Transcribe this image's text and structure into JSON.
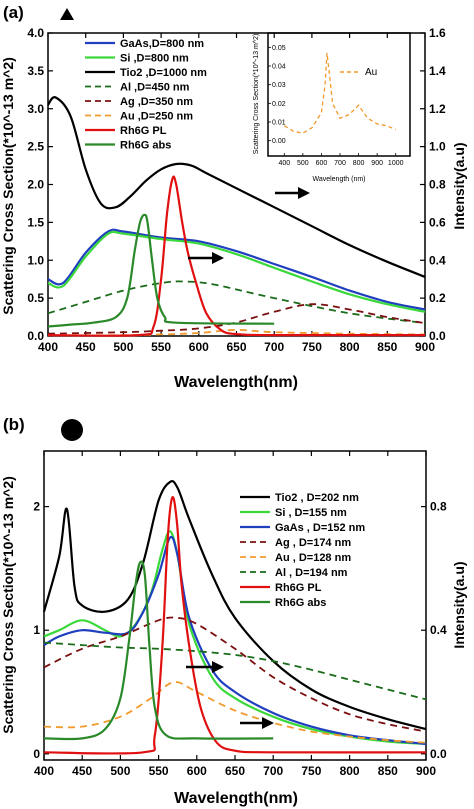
{
  "chart_data": [
    {
      "panel": "(a)",
      "type": "line",
      "xlabel": "Wavelength(nm)",
      "ylabel": "Scattering Cross Section(*10^-13 m^2)",
      "y2label": "Intensity(a.u)",
      "xlim": [
        400,
        900
      ],
      "ylim": [
        0,
        4.0
      ],
      "y2lim": [
        0,
        1.6
      ],
      "xticks": [
        "400",
        "450",
        "500",
        "550",
        "600",
        "650",
        "700",
        "750",
        "800",
        "850",
        "900"
      ],
      "yticks": [
        "0.0",
        "0.5",
        "1.0",
        "1.5",
        "2.0",
        "2.5",
        "3.0",
        "3.5",
        "4.0"
      ],
      "y2ticks": [
        "0.0",
        "0.2",
        "0.4",
        "0.6",
        "0.8",
        "1.0",
        "1.2",
        "1.4",
        "1.6"
      ],
      "legend_position": "top-left",
      "series": [
        {
          "name": "GaAs,D=800 nm",
          "color": "#1f3fbf",
          "style": "solid",
          "x": [
            400,
            420,
            450,
            480,
            500,
            550,
            600,
            650,
            700,
            750,
            800,
            850,
            900
          ],
          "y": [
            0.75,
            0.7,
            1.1,
            1.38,
            1.38,
            1.3,
            1.25,
            1.12,
            0.95,
            0.78,
            0.6,
            0.45,
            0.35
          ]
        },
        {
          "name": "Si      ,D=800 nm",
          "color": "#3ad83a",
          "style": "solid",
          "x": [
            400,
            420,
            450,
            480,
            500,
            550,
            600,
            650,
            700,
            750,
            800,
            850,
            900
          ],
          "y": [
            0.7,
            0.66,
            1.05,
            1.35,
            1.35,
            1.28,
            1.22,
            1.08,
            0.9,
            0.72,
            0.55,
            0.42,
            0.32
          ]
        },
        {
          "name": "Tio2   ,D=1000 nm",
          "color": "#000000",
          "style": "solid",
          "x": [
            400,
            410,
            430,
            450,
            470,
            490,
            510,
            530,
            550,
            570,
            590,
            610,
            650,
            700,
            750,
            800,
            850,
            900
          ],
          "y": [
            3.05,
            3.15,
            2.9,
            2.2,
            1.75,
            1.7,
            1.85,
            2.05,
            2.2,
            2.27,
            2.25,
            2.15,
            1.95,
            1.7,
            1.45,
            1.2,
            0.98,
            0.78
          ]
        },
        {
          "name": "Al      ,D=450 nm",
          "color": "#1a6b1a",
          "style": "dashed",
          "x": [
            400,
            450,
            500,
            550,
            580,
            620,
            700,
            800,
            900
          ],
          "y": [
            0.3,
            0.45,
            0.6,
            0.7,
            0.72,
            0.68,
            0.5,
            0.3,
            0.17
          ]
        },
        {
          "name": "Ag      ,D=350 nm",
          "color": "#7a1010",
          "style": "dashed",
          "x": [
            400,
            500,
            550,
            600,
            650,
            700,
            750,
            800,
            850,
            900
          ],
          "y": [
            0.03,
            0.05,
            0.07,
            0.1,
            0.18,
            0.32,
            0.42,
            0.35,
            0.25,
            0.17
          ]
        },
        {
          "name": "Au      ,D=250 nm",
          "color": "#f29a2e",
          "style": "dashed",
          "x": [
            400,
            500,
            550,
            600,
            650,
            700,
            800,
            900
          ],
          "y": [
            0.01,
            0.01,
            0.02,
            0.04,
            0.08,
            0.05,
            0.03,
            0.02
          ]
        },
        {
          "name": "Rh6G PL",
          "color": "#e01010",
          "style": "solid",
          "axis": "right",
          "x": [
            400,
            520,
            540,
            550,
            558,
            565,
            570,
            578,
            585,
            595,
            610,
            630,
            650,
            700,
            900
          ],
          "y": [
            0.005,
            0.005,
            0.05,
            0.3,
            0.65,
            0.83,
            0.8,
            0.6,
            0.45,
            0.3,
            0.12,
            0.03,
            0.01,
            0.005,
            0.005
          ]
        },
        {
          "name": "Rh6G abs",
          "color": "#2a8a2a",
          "style": "solid",
          "axis": "right",
          "x": [
            400,
            430,
            460,
            490,
            505,
            515,
            522,
            528,
            532,
            538,
            545,
            555,
            570,
            700
          ],
          "y": [
            0.05,
            0.06,
            0.07,
            0.1,
            0.2,
            0.45,
            0.6,
            0.64,
            0.6,
            0.4,
            0.2,
            0.1,
            0.07,
            0.065
          ]
        }
      ],
      "inset": {
        "ylabel": "Scattering Cross Section(*10^-13 m^2)",
        "xlabel": "Wavelength (nm)",
        "legend": "Au",
        "xlim": [
          350,
          1050
        ],
        "ylim": [
          -0.005,
          0.055
        ],
        "xticks": [
          "400",
          "500",
          "600",
          "700",
          "800",
          "900",
          "1000"
        ],
        "yticks": [
          "0.00",
          "0.01",
          "0.02",
          "0.03",
          "0.04",
          "0.05"
        ],
        "x": [
          400,
          450,
          500,
          550,
          600,
          620,
          630,
          640,
          660,
          700,
          750,
          800,
          820,
          850,
          900,
          950,
          1000
        ],
        "y": [
          0.008,
          0.005,
          0.004,
          0.007,
          0.015,
          0.03,
          0.047,
          0.038,
          0.02,
          0.012,
          0.014,
          0.019,
          0.016,
          0.012,
          0.009,
          0.008,
          0.006
        ]
      }
    },
    {
      "panel": "(b)",
      "type": "line",
      "xlabel": "Wavelength(nm)",
      "ylabel": "Scattering Cross Section(*10^-13 m^2)",
      "y2label": "Intensity(a.u)",
      "xlim": [
        400,
        900
      ],
      "ylim": [
        -0.05,
        2.45
      ],
      "y2lim": [
        -0.02,
        0.98
      ],
      "xticks": [
        "400",
        "450",
        "500",
        "550",
        "600",
        "650",
        "700",
        "750",
        "800",
        "850",
        "900"
      ],
      "yticks": [
        "0",
        "1",
        "2"
      ],
      "y2ticks": [
        "0.0",
        "0.4",
        "0.8"
      ],
      "legend_position": "top-right",
      "series": [
        {
          "name": "Tio2   , D=202 nm",
          "color": "#000000",
          "style": "solid",
          "x": [
            400,
            420,
            430,
            440,
            450,
            480,
            510,
            530,
            550,
            565,
            575,
            590,
            620,
            650,
            700,
            750,
            800,
            850,
            900
          ],
          "y": [
            1.15,
            1.6,
            1.98,
            1.35,
            1.2,
            1.15,
            1.25,
            1.55,
            2.05,
            2.2,
            2.15,
            1.9,
            1.45,
            1.1,
            0.75,
            0.52,
            0.38,
            0.28,
            0.2
          ]
        },
        {
          "name": "Si        , D=155 nm",
          "color": "#3ad83a",
          "style": "solid",
          "x": [
            400,
            420,
            450,
            480,
            500,
            520,
            540,
            555,
            565,
            575,
            590,
            620,
            650,
            700,
            750,
            800,
            850,
            900
          ],
          "y": [
            0.95,
            1.0,
            1.08,
            1.0,
            0.95,
            1.05,
            1.3,
            1.65,
            1.8,
            1.6,
            1.05,
            0.62,
            0.45,
            0.3,
            0.2,
            0.14,
            0.1,
            0.08
          ]
        },
        {
          "name": "GaAs    , D=152 nm",
          "color": "#1f3fbf",
          "style": "solid",
          "x": [
            400,
            420,
            450,
            480,
            510,
            530,
            550,
            565,
            575,
            590,
            620,
            650,
            700,
            750,
            800,
            850,
            900
          ],
          "y": [
            0.88,
            0.95,
            1.0,
            0.98,
            0.98,
            1.15,
            1.45,
            1.75,
            1.6,
            1.1,
            0.68,
            0.5,
            0.33,
            0.22,
            0.15,
            0.11,
            0.08
          ]
        },
        {
          "name": "Ag       , D=174 nm",
          "color": "#7a1010",
          "style": "dashed",
          "x": [
            400,
            450,
            500,
            550,
            575,
            600,
            650,
            700,
            750,
            800,
            850,
            900
          ],
          "y": [
            0.7,
            0.85,
            0.95,
            1.08,
            1.1,
            1.05,
            0.85,
            0.62,
            0.45,
            0.32,
            0.24,
            0.18
          ]
        },
        {
          "name": "Au       , D=128 nm",
          "color": "#f29a2e",
          "style": "dashed",
          "x": [
            400,
            450,
            500,
            540,
            570,
            600,
            650,
            700,
            750,
            800,
            850,
            900
          ],
          "y": [
            0.22,
            0.22,
            0.3,
            0.45,
            0.58,
            0.5,
            0.35,
            0.25,
            0.18,
            0.14,
            0.11,
            0.09
          ]
        },
        {
          "name": "Al        , D=194 nm",
          "color": "#1a6b1a",
          "style": "dashed",
          "x": [
            400,
            450,
            500,
            550,
            600,
            650,
            700,
            750,
            800,
            850,
            900
          ],
          "y": [
            0.9,
            0.88,
            0.86,
            0.85,
            0.83,
            0.8,
            0.75,
            0.68,
            0.6,
            0.52,
            0.44
          ]
        },
        {
          "name": "Rh6G PL",
          "color": "#e01010",
          "style": "solid",
          "axis": "right",
          "x": [
            400,
            530,
            545,
            555,
            562,
            568,
            574,
            580,
            590,
            605,
            625,
            650,
            700,
            900
          ],
          "y": [
            0.005,
            0.005,
            0.06,
            0.35,
            0.7,
            0.83,
            0.75,
            0.55,
            0.35,
            0.15,
            0.04,
            0.01,
            0.005,
            0.005
          ]
        },
        {
          "name": "Rh6G abs",
          "color": "#2a8a2a",
          "style": "solid",
          "axis": "right",
          "x": [
            400,
            450,
            480,
            500,
            512,
            520,
            526,
            532,
            538,
            545,
            560,
            600,
            700
          ],
          "y": [
            0.05,
            0.05,
            0.08,
            0.18,
            0.38,
            0.55,
            0.62,
            0.58,
            0.35,
            0.15,
            0.06,
            0.05,
            0.05
          ]
        }
      ]
    }
  ],
  "colors": {
    "arrow": "#000000",
    "frame": "#000000",
    "background": "#ffffff"
  },
  "icons": {
    "panel_a_marker": "triangle-icon",
    "panel_b_marker": "circle-icon"
  }
}
